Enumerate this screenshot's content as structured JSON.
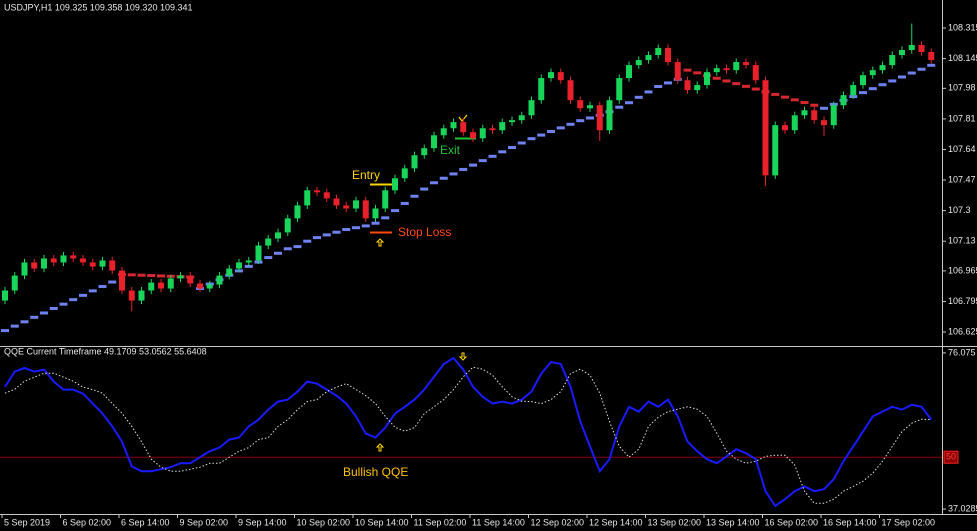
{
  "chart_data": [
    {
      "type": "candlestick",
      "title": "USDJPY,H1  109.325 109.358 109.320 109.341",
      "up_color": "#19d65a",
      "down_color": "#e8212b",
      "candles": [
        [
          106.8,
          106.876,
          106.78,
          106.856
        ],
        [
          106.856,
          106.959,
          106.836,
          106.939
        ],
        [
          106.939,
          107.032,
          106.919,
          107.012
        ],
        [
          107.012,
          107.032,
          106.958,
          106.978
        ],
        [
          106.978,
          107.054,
          106.958,
          107.034
        ],
        [
          107.034,
          107.054,
          106.992,
          107.012
        ],
        [
          107.012,
          107.071,
          106.992,
          107.051
        ],
        [
          107.051,
          107.071,
          107.014,
          107.034
        ],
        [
          107.034,
          107.054,
          106.992,
          107.012
        ],
        [
          107.012,
          107.032,
          106.969,
          106.989
        ],
        [
          106.989,
          107.043,
          106.969,
          107.023
        ],
        [
          107.023,
          107.043,
          106.947,
          106.967
        ],
        [
          106.967,
          106.987,
          106.836,
          106.856
        ],
        [
          106.856,
          106.876,
          106.74,
          106.8
        ],
        [
          106.8,
          106.876,
          106.78,
          106.856
        ],
        [
          106.856,
          106.92,
          106.836,
          106.9
        ],
        [
          106.9,
          106.92,
          106.847,
          106.867
        ],
        [
          106.867,
          106.943,
          106.847,
          106.923
        ],
        [
          106.923,
          106.959,
          106.903,
          106.939
        ],
        [
          106.939,
          106.959,
          106.875,
          106.895
        ],
        [
          106.895,
          106.915,
          106.847,
          106.867
        ],
        [
          106.867,
          106.909,
          106.847,
          106.889
        ],
        [
          106.889,
          106.959,
          106.869,
          106.939
        ],
        [
          106.939,
          106.998,
          106.919,
          106.978
        ],
        [
          106.978,
          107.032,
          106.958,
          107.012
        ],
        [
          107.012,
          107.043,
          106.992,
          107.023
        ],
        [
          107.023,
          107.126,
          107.003,
          107.106
        ],
        [
          107.106,
          107.165,
          107.086,
          107.145
        ],
        [
          107.145,
          107.199,
          107.125,
          107.179
        ],
        [
          107.179,
          107.277,
          107.159,
          107.257
        ],
        [
          107.257,
          107.349,
          107.237,
          107.329
        ],
        [
          107.329,
          107.433,
          107.309,
          107.413
        ],
        [
          107.413,
          107.433,
          107.382,
          107.402
        ],
        [
          107.402,
          107.422,
          107.348,
          107.368
        ],
        [
          107.368,
          107.388,
          107.309,
          107.329
        ],
        [
          107.329,
          107.349,
          107.292,
          107.312
        ],
        [
          107.312,
          107.377,
          107.292,
          107.357
        ],
        [
          107.357,
          107.377,
          107.237,
          107.257
        ],
        [
          107.257,
          107.332,
          107.237,
          107.312
        ],
        [
          107.312,
          107.433,
          107.292,
          107.413
        ],
        [
          107.413,
          107.5,
          107.393,
          107.48
        ],
        [
          107.48,
          107.555,
          107.46,
          107.535
        ],
        [
          107.535,
          107.628,
          107.515,
          107.608
        ],
        [
          107.608,
          107.667,
          107.588,
          107.647
        ],
        [
          107.647,
          107.739,
          107.627,
          107.719
        ],
        [
          107.719,
          107.778,
          107.699,
          107.758
        ],
        [
          107.758,
          107.812,
          107.738,
          107.792
        ],
        [
          107.792,
          107.812,
          107.716,
          107.736
        ],
        [
          107.736,
          107.756,
          107.682,
          107.702
        ],
        [
          107.702,
          107.778,
          107.682,
          107.758
        ],
        [
          107.758,
          107.778,
          107.727,
          107.747
        ],
        [
          107.747,
          107.812,
          107.727,
          107.792
        ],
        [
          107.792,
          107.823,
          107.772,
          107.803
        ],
        [
          107.803,
          107.85,
          107.783,
          107.83
        ],
        [
          107.83,
          107.934,
          107.81,
          107.914
        ],
        [
          107.914,
          108.057,
          107.894,
          108.037
        ],
        [
          108.037,
          108.09,
          108.017,
          108.07
        ],
        [
          108.07,
          108.09,
          108.005,
          108.025
        ],
        [
          108.025,
          108.045,
          107.894,
          107.914
        ],
        [
          107.914,
          107.934,
          107.849,
          107.869
        ],
        [
          107.869,
          107.906,
          107.849,
          107.886
        ],
        [
          107.886,
          107.906,
          107.687,
          107.747
        ],
        [
          107.747,
          107.934,
          107.727,
          107.914
        ],
        [
          107.914,
          108.057,
          107.894,
          108.037
        ],
        [
          108.037,
          108.129,
          108.017,
          108.109
        ],
        [
          108.109,
          108.157,
          108.089,
          108.137
        ],
        [
          108.137,
          108.185,
          108.117,
          108.165
        ],
        [
          108.165,
          108.224,
          108.145,
          108.204
        ],
        [
          108.204,
          108.224,
          108.106,
          108.126
        ],
        [
          108.126,
          108.146,
          108.005,
          108.025
        ],
        [
          108.025,
          108.045,
          107.95,
          107.97
        ],
        [
          107.97,
          108.018,
          107.95,
          107.998
        ],
        [
          107.998,
          108.09,
          107.978,
          108.07
        ],
        [
          108.07,
          108.112,
          108.05,
          108.092
        ],
        [
          108.092,
          108.112,
          108.061,
          108.081
        ],
        [
          108.081,
          108.146,
          108.061,
          108.126
        ],
        [
          108.126,
          108.146,
          108.089,
          108.109
        ],
        [
          108.109,
          108.129,
          108.005,
          108.025
        ],
        [
          108.025,
          108.045,
          107.436,
          107.496
        ],
        [
          107.496,
          107.795,
          107.476,
          107.775
        ],
        [
          107.775,
          107.795,
          107.727,
          107.747
        ],
        [
          107.747,
          107.85,
          107.727,
          107.83
        ],
        [
          107.83,
          107.878,
          107.81,
          107.858
        ],
        [
          107.858,
          107.878,
          107.783,
          107.803
        ],
        [
          107.803,
          107.823,
          107.715,
          107.775
        ],
        [
          107.775,
          107.906,
          107.755,
          107.886
        ],
        [
          107.886,
          107.962,
          107.866,
          107.942
        ],
        [
          107.942,
          108.018,
          107.922,
          107.998
        ],
        [
          107.998,
          108.073,
          107.978,
          108.053
        ],
        [
          108.053,
          108.101,
          108.033,
          108.081
        ],
        [
          108.081,
          108.129,
          108.061,
          108.109
        ],
        [
          108.109,
          108.185,
          108.089,
          108.165
        ],
        [
          108.165,
          108.213,
          108.145,
          108.193
        ],
        [
          108.193,
          108.34,
          108.173,
          108.221
        ],
        [
          108.221,
          108.241,
          108.162,
          108.182
        ],
        [
          108.182,
          108.202,
          108.117,
          108.137
        ]
      ],
      "series": [
        {
          "color": "#6f82f0",
          "values": [
            106.633,
            106.658,
            106.682,
            106.707,
            106.731,
            106.756,
            106.78,
            106.805,
            106.829,
            106.854,
            106.878,
            106.903,
            null,
            null,
            null,
            null,
            null,
            null,
            null,
            null,
            106.867,
            106.892,
            106.916,
            106.941,
            106.965,
            106.99,
            107.014,
            107.039,
            107.063,
            107.088,
            107.1,
            107.13,
            107.15,
            107.165,
            107.18,
            107.195,
            107.205,
            107.215,
            107.23,
            107.26,
            107.3,
            107.34,
            107.38,
            107.42,
            107.455,
            107.48,
            107.504,
            107.529,
            107.553,
            107.578,
            107.602,
            107.627,
            107.651,
            107.676,
            107.7,
            107.72,
            107.74,
            107.76,
            107.78,
            107.8,
            107.815,
            107.83,
            107.85,
            107.875,
            107.9,
            107.93,
            107.96,
            107.99,
            108.01,
            108.03,
            null,
            null,
            null,
            null,
            null,
            null,
            null,
            null,
            null,
            null,
            null,
            null,
            null,
            null,
            107.869,
            107.891,
            107.913,
            107.934,
            107.956,
            107.978,
            108.0,
            108.021,
            108.043,
            108.065,
            108.086,
            108.108
          ]
        },
        {
          "color": "#d8282f",
          "values": [
            null,
            null,
            null,
            null,
            null,
            null,
            null,
            null,
            null,
            null,
            null,
            null,
            106.945,
            106.943,
            106.941,
            106.939,
            106.937,
            106.935,
            106.933,
            106.931,
            null,
            null,
            null,
            null,
            null,
            null,
            null,
            null,
            null,
            null,
            null,
            null,
            null,
            null,
            null,
            null,
            null,
            null,
            null,
            null,
            null,
            null,
            null,
            null,
            null,
            null,
            null,
            null,
            null,
            null,
            null,
            null,
            null,
            null,
            null,
            null,
            null,
            null,
            null,
            null,
            null,
            null,
            null,
            null,
            null,
            null,
            null,
            null,
            null,
            null,
            108.081,
            108.066,
            108.051,
            108.036,
            108.021,
            108.006,
            107.991,
            107.976,
            107.961,
            107.946,
            107.931,
            107.916,
            107.901,
            107.886,
            null,
            null,
            null,
            null,
            null,
            null,
            null,
            null,
            null,
            null,
            null,
            null
          ]
        }
      ],
      "ylim": [
        106.553,
        108.471
      ],
      "yticks": [
        106.625,
        106.795,
        106.965,
        107.13,
        107.3,
        107.47,
        107.64,
        107.81,
        107.98,
        108.145,
        108.315
      ],
      "xticks": [
        {
          "value": 0,
          "label": "5 Sep 2019"
        },
        {
          "value": 6,
          "label": "6 Sep 02:00"
        },
        {
          "value": 12,
          "label": "6 Sep 14:00"
        },
        {
          "value": 18,
          "label": "9 Sep 02:00"
        },
        {
          "value": 24,
          "label": "9 Sep 14:00"
        },
        {
          "value": 30,
          "label": "10 Sep 02:00"
        },
        {
          "value": 36,
          "label": "10 Sep 14:00"
        },
        {
          "value": 42,
          "label": "11 Sep 02:00"
        },
        {
          "value": 48,
          "label": "11 Sep 14:00"
        },
        {
          "value": 54,
          "label": "12 Sep 02:00"
        },
        {
          "value": 60,
          "label": "12 Sep 14:00"
        },
        {
          "value": 66,
          "label": "13 Sep 02:00"
        },
        {
          "value": 72,
          "label": "13 Sep 14:00"
        },
        {
          "value": 78,
          "label": "16 Sep 02:00"
        },
        {
          "value": 84,
          "label": "16 Sep 14:00"
        },
        {
          "value": 90,
          "label": "17 Sep 02:00"
        }
      ],
      "annotations": [
        {
          "text": "Entry",
          "color": "#ffd600"
        },
        {
          "text": "Exit",
          "color": "#22c43a"
        },
        {
          "text": "Stop Loss",
          "color": "#ff4a14"
        }
      ]
    },
    {
      "type": "line",
      "title": "QQE Current Timeframe 49.1709 53.0562 55.6408",
      "series": [
        {
          "color": "#1a1aff",
          "dash": false,
          "values": [
            67.6,
            71.4,
            72.3,
            71.4,
            71.9,
            68.9,
            66.9,
            66.9,
            65.9,
            63.4,
            60.9,
            57.7,
            53.9,
            47.7,
            46.5,
            46.5,
            47.0,
            47.5,
            48.5,
            48.5,
            50.0,
            51.5,
            52.4,
            54.4,
            54.9,
            57.7,
            59.4,
            61.9,
            63.9,
            64.4,
            66.4,
            68.9,
            68.4,
            66.9,
            65.4,
            63.4,
            60.2,
            55.9,
            54.9,
            57.4,
            60.9,
            62.6,
            64.4,
            66.9,
            70.1,
            73.3,
            74.8,
            71.9,
            67.6,
            65.1,
            63.4,
            63.9,
            63.4,
            64.4,
            66.4,
            70.9,
            73.8,
            73.3,
            67.6,
            58.9,
            52.7,
            46.5,
            49.5,
            57.7,
            62.6,
            61.4,
            63.9,
            62.6,
            64.4,
            60.2,
            53.9,
            51.5,
            49.5,
            48.5,
            50.2,
            52.0,
            51.0,
            49.5,
            41.5,
            37.8,
            39.5,
            41.5,
            42.7,
            41.5,
            42.0,
            44.5,
            49.0,
            52.7,
            56.4,
            60.2,
            61.4,
            62.6,
            61.9,
            63.1,
            62.6,
            59.4
          ]
        },
        {
          "color": "#e0e0e0",
          "dash": true,
          "values": [
            66.0,
            67.0,
            69.0,
            70.0,
            71.0,
            71.0,
            70.0,
            69.0,
            67.5,
            66.9,
            66.0,
            63.4,
            61.0,
            57.7,
            53.9,
            49.5,
            47.5,
            46.5,
            46.5,
            47.0,
            47.5,
            48.5,
            48.5,
            50.0,
            51.5,
            52.4,
            54.4,
            54.9,
            57.7,
            59.4,
            61.9,
            63.9,
            64.4,
            66.4,
            67.5,
            68.4,
            66.9,
            65.4,
            63.4,
            60.2,
            57.5,
            56.5,
            57.4,
            60.9,
            62.6,
            64.4,
            66.9,
            70.1,
            72.5,
            72.0,
            70.5,
            67.6,
            65.1,
            64.0,
            63.9,
            63.4,
            64.4,
            66.4,
            70.9,
            72.0,
            70.5,
            66.0,
            58.9,
            52.7,
            50.0,
            52.0,
            57.7,
            60.0,
            61.4,
            62.0,
            62.6,
            62.0,
            60.2,
            56.0,
            51.5,
            49.5,
            48.5,
            49.0,
            50.2,
            50.5,
            50.5,
            48.0,
            41.5,
            38.5,
            38.5,
            39.5,
            41.5,
            42.7,
            44.0,
            46.0,
            49.0,
            52.7,
            56.4,
            58.5,
            59.5,
            59.4
          ]
        }
      ],
      "ylim": [
        35.8,
        77.3
      ],
      "yticks": [
        37.0285,
        50,
        76.075
      ],
      "level_color": "#8b0000",
      "annotations": [
        {
          "text": "Bullish QQE",
          "color": "#ffc107"
        }
      ]
    }
  ]
}
